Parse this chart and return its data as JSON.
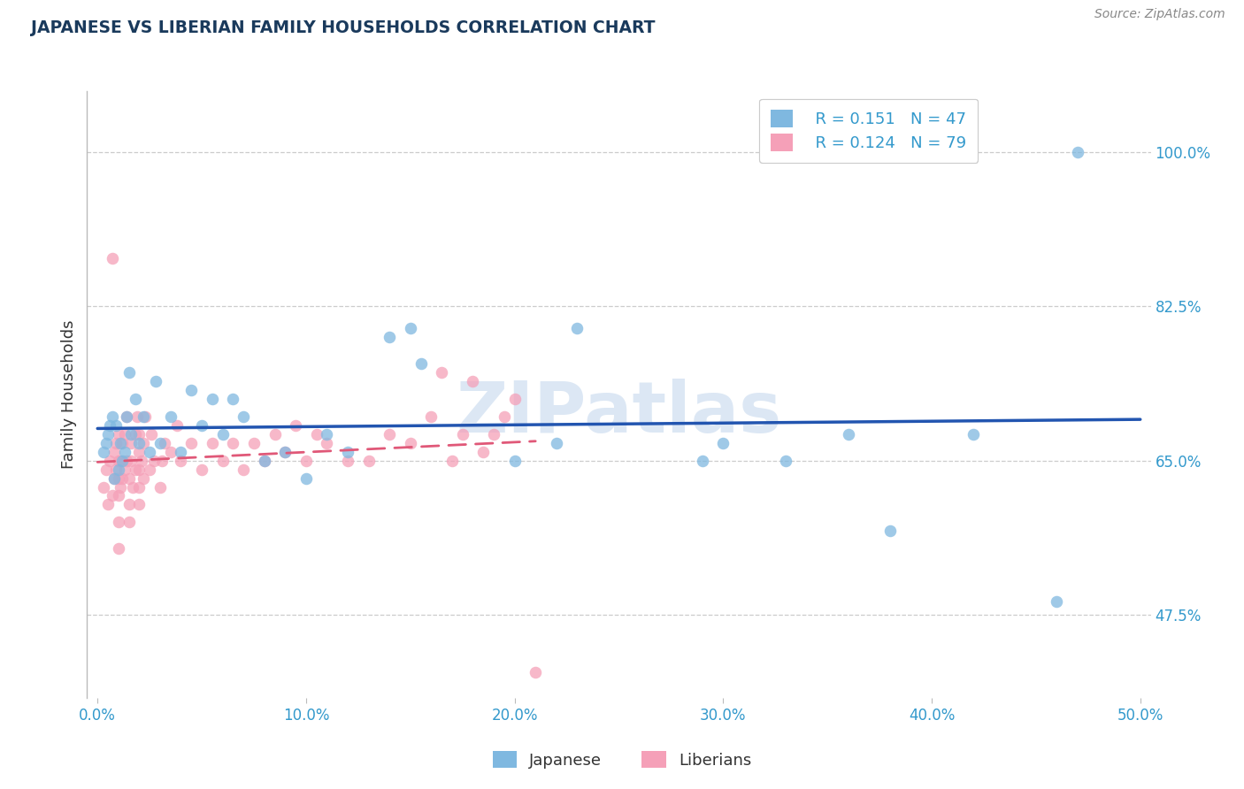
{
  "title": "JAPANESE VS LIBERIAN FAMILY HOUSEHOLDS CORRELATION CHART",
  "source": "Source: ZipAtlas.com",
  "ylabel": "Family Households",
  "xlabel_ticks": [
    "0.0%",
    "10.0%",
    "20.0%",
    "30.0%",
    "40.0%",
    "50.0%"
  ],
  "xlabel_vals": [
    0.0,
    0.1,
    0.2,
    0.3,
    0.4,
    0.5
  ],
  "ylabel_ticks": [
    "47.5%",
    "65.0%",
    "82.5%",
    "100.0%"
  ],
  "ylabel_vals": [
    0.475,
    0.65,
    0.825,
    1.0
  ],
  "xlim": [
    -0.005,
    0.505
  ],
  "ylim": [
    0.38,
    1.07
  ],
  "watermark": "ZIPatlas",
  "legend_r_japanese": "R = 0.151",
  "legend_n_japanese": "N = 47",
  "legend_r_liberian": "R = 0.124",
  "legend_n_liberian": "N = 79",
  "japanese_color": "#7fb8e0",
  "liberian_color": "#f5a0b8",
  "japanese_line_color": "#2255b0",
  "liberian_line_color": "#e05878",
  "title_color": "#1a3a5c",
  "axis_label_color": "#333333",
  "tick_label_color": "#3399cc",
  "source_color": "#888888",
  "grid_color": "#cccccc",
  "japanese_x": [
    0.003,
    0.004,
    0.005,
    0.006,
    0.007,
    0.008,
    0.009,
    0.01,
    0.011,
    0.012,
    0.013,
    0.014,
    0.015,
    0.016,
    0.018,
    0.02,
    0.022,
    0.025,
    0.028,
    0.03,
    0.035,
    0.04,
    0.045,
    0.05,
    0.055,
    0.06,
    0.065,
    0.07,
    0.08,
    0.09,
    0.1,
    0.11,
    0.12,
    0.14,
    0.15,
    0.155,
    0.2,
    0.22,
    0.23,
    0.29,
    0.3,
    0.33,
    0.36,
    0.38,
    0.42,
    0.46,
    0.47
  ],
  "japanese_y": [
    0.66,
    0.67,
    0.68,
    0.69,
    0.7,
    0.63,
    0.69,
    0.64,
    0.67,
    0.65,
    0.66,
    0.7,
    0.75,
    0.68,
    0.72,
    0.67,
    0.7,
    0.66,
    0.74,
    0.67,
    0.7,
    0.66,
    0.73,
    0.69,
    0.72,
    0.68,
    0.72,
    0.7,
    0.65,
    0.66,
    0.63,
    0.68,
    0.66,
    0.79,
    0.8,
    0.76,
    0.65,
    0.67,
    0.8,
    0.65,
    0.67,
    0.65,
    0.68,
    0.57,
    0.68,
    0.49,
    1.0
  ],
  "liberian_x": [
    0.003,
    0.004,
    0.005,
    0.006,
    0.007,
    0.007,
    0.008,
    0.008,
    0.009,
    0.009,
    0.01,
    0.01,
    0.01,
    0.01,
    0.01,
    0.01,
    0.011,
    0.011,
    0.012,
    0.012,
    0.013,
    0.013,
    0.014,
    0.014,
    0.015,
    0.015,
    0.015,
    0.016,
    0.016,
    0.017,
    0.018,
    0.018,
    0.019,
    0.02,
    0.02,
    0.02,
    0.02,
    0.02,
    0.021,
    0.022,
    0.022,
    0.023,
    0.025,
    0.026,
    0.027,
    0.03,
    0.031,
    0.032,
    0.035,
    0.038,
    0.04,
    0.045,
    0.05,
    0.055,
    0.06,
    0.065,
    0.07,
    0.075,
    0.08,
    0.085,
    0.09,
    0.095,
    0.1,
    0.105,
    0.11,
    0.12,
    0.13,
    0.14,
    0.15,
    0.16,
    0.165,
    0.17,
    0.175,
    0.18,
    0.185,
    0.19,
    0.195,
    0.2,
    0.21
  ],
  "liberian_y": [
    0.62,
    0.64,
    0.6,
    0.65,
    0.61,
    0.88,
    0.66,
    0.63,
    0.64,
    0.67,
    0.55,
    0.58,
    0.61,
    0.63,
    0.65,
    0.68,
    0.62,
    0.65,
    0.63,
    0.67,
    0.64,
    0.68,
    0.65,
    0.7,
    0.58,
    0.6,
    0.63,
    0.65,
    0.67,
    0.62,
    0.64,
    0.68,
    0.7,
    0.6,
    0.62,
    0.64,
    0.66,
    0.68,
    0.65,
    0.63,
    0.67,
    0.7,
    0.64,
    0.68,
    0.65,
    0.62,
    0.65,
    0.67,
    0.66,
    0.69,
    0.65,
    0.67,
    0.64,
    0.67,
    0.65,
    0.67,
    0.64,
    0.67,
    0.65,
    0.68,
    0.66,
    0.69,
    0.65,
    0.68,
    0.67,
    0.65,
    0.65,
    0.68,
    0.67,
    0.7,
    0.75,
    0.65,
    0.68,
    0.74,
    0.66,
    0.68,
    0.7,
    0.72,
    0.41
  ]
}
